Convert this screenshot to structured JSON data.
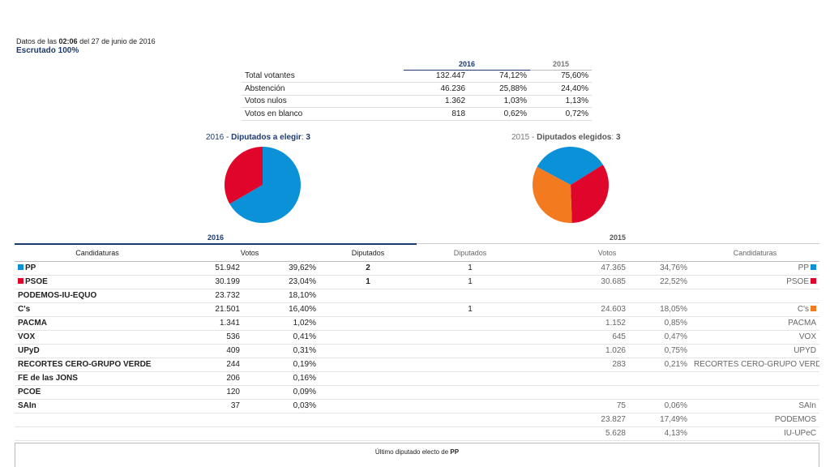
{
  "header": {
    "prefix": "Datos de las",
    "time": "02:06",
    "date": "del 27 de junio de 2016",
    "escrutado": "Escrutado 100%"
  },
  "summary": {
    "year_2016": "2016",
    "year_2015": "2015",
    "rows": [
      {
        "label": "Total votantes",
        "v2016": "132.447",
        "p2016": "74,12%",
        "p2015": "75,60%"
      },
      {
        "label": "Abstención",
        "v2016": "46.236",
        "p2016": "25,88%",
        "p2015": "24,40%"
      },
      {
        "label": "Votos nulos",
        "v2016": "1.362",
        "p2016": "1,03%",
        "p2015": "1,13%"
      },
      {
        "label": "Votos en blanco",
        "v2016": "818",
        "p2016": "0,62%",
        "p2015": "0,72%"
      }
    ]
  },
  "pies": {
    "p2016": {
      "year": "2016",
      "sep": " - ",
      "label": "Diputados a elegir",
      "colon": ": ",
      "count": "3"
    },
    "p2015": {
      "year": "2015",
      "sep": " - ",
      "label": "Diputados elegidos",
      "colon": ": ",
      "count": "3"
    }
  },
  "chart_data": [
    {
      "type": "pie",
      "slices": [
        {
          "party": "PP",
          "value": 2,
          "color": "#0a91d8"
        },
        {
          "party": "PSOE",
          "value": 1,
          "color": "#e0062b"
        }
      ]
    },
    {
      "type": "pie",
      "slices": [
        {
          "party": "PP",
          "value": 1,
          "color": "#0a91d8"
        },
        {
          "party": "PSOE",
          "value": 1,
          "color": "#e0062b"
        },
        {
          "party": "C's",
          "value": 1,
          "color": "#f47a20"
        }
      ]
    }
  ],
  "main": {
    "year_2016": "2016",
    "year_2015": "2015",
    "headers": {
      "candidaturas": "Candidaturas",
      "votos": "Votos",
      "diputados": "Diputados",
      "diputados_old": "Diputados",
      "votos_old": "Votos",
      "candidaturas_old": "Candidaturas"
    },
    "rows": [
      {
        "name": "PP",
        "color": "#0a91d8",
        "votos": "51.942",
        "pct": "39,62%",
        "dip": "2",
        "dip_old": "1",
        "votos_old": "47.365",
        "pct_old": "34,76%",
        "name_old": "PP",
        "color_old": "#0a91d8"
      },
      {
        "name": "PSOE",
        "color": "#e0062b",
        "votos": "30.199",
        "pct": "23,04%",
        "dip": "1",
        "dip_old": "1",
        "votos_old": "30.685",
        "pct_old": "22,52%",
        "name_old": "PSOE",
        "color_old": "#e0062b"
      },
      {
        "name": "PODEMOS-IU-EQUO",
        "votos": "23.732",
        "pct": "18,10%",
        "dip": "",
        "dip_old": "",
        "votos_old": "",
        "pct_old": "",
        "name_old": ""
      },
      {
        "name": "C's",
        "votos": "21.501",
        "pct": "16,40%",
        "dip": "",
        "dip_old": "1",
        "votos_old": "24.603",
        "pct_old": "18,05%",
        "name_old": "C's",
        "color_old": "#f47a20"
      },
      {
        "name": "PACMA",
        "votos": "1.341",
        "pct": "1,02%",
        "dip": "",
        "dip_old": "",
        "votos_old": "1.152",
        "pct_old": "0,85%",
        "name_old": "PACMA"
      },
      {
        "name": "VOX",
        "votos": "536",
        "pct": "0,41%",
        "dip": "",
        "dip_old": "",
        "votos_old": "645",
        "pct_old": "0,47%",
        "name_old": "VOX"
      },
      {
        "name": "UPyD",
        "votos": "409",
        "pct": "0,31%",
        "dip": "",
        "dip_old": "",
        "votos_old": "1.026",
        "pct_old": "0,75%",
        "name_old": "UPYD"
      },
      {
        "name": "RECORTES CERO-GRUPO VERDE",
        "votos": "244",
        "pct": "0,19%",
        "dip": "",
        "dip_old": "",
        "votos_old": "283",
        "pct_old": "0,21%",
        "name_old": "RECORTES CERO-GRUPO VERDE"
      },
      {
        "name": "FE de las JONS",
        "votos": "206",
        "pct": "0,16%",
        "dip": "",
        "dip_old": "",
        "votos_old": "",
        "pct_old": "",
        "name_old": ""
      },
      {
        "name": "PCOE",
        "votos": "120",
        "pct": "0,09%",
        "dip": "",
        "dip_old": "",
        "votos_old": "",
        "pct_old": "",
        "name_old": ""
      },
      {
        "name": "SAIn",
        "votos": "37",
        "pct": "0,03%",
        "dip": "",
        "dip_old": "",
        "votos_old": "75",
        "pct_old": "0,06%",
        "name_old": "SAIn"
      },
      {
        "name": "",
        "votos": "",
        "pct": "",
        "dip": "",
        "dip_old": "",
        "votos_old": "23.827",
        "pct_old": "17,49%",
        "name_old": "PODEMOS"
      },
      {
        "name": "",
        "votos": "",
        "pct": "",
        "dip": "",
        "dip_old": "",
        "votos_old": "5.628",
        "pct_old": "4,13%",
        "name_old": "IU-UPeC"
      }
    ]
  },
  "footer": {
    "text": "Último diputado electo de",
    "party": "PP"
  }
}
